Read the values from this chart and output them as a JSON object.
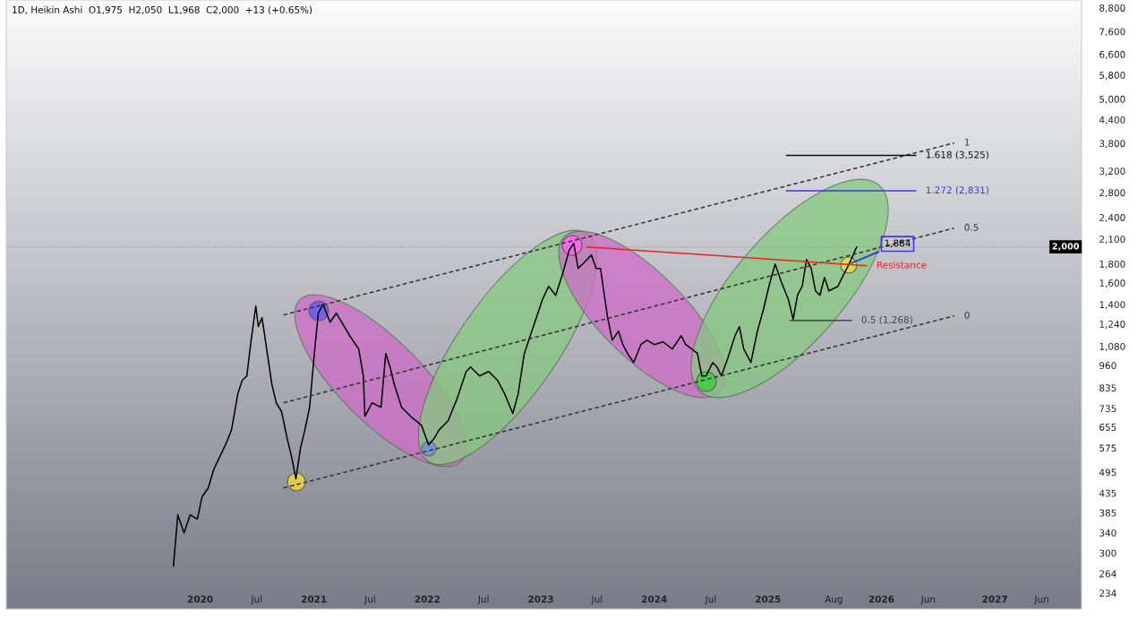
{
  "chart_data": {
    "type": "line",
    "title": "1D, Heikin Ashi  O1,975  H2,050  L1,968  C2,000  +13 (+0.65%)",
    "log": true,
    "grid": false,
    "legend": false,
    "xlim": [
      "2018-04-17",
      "2027-10-07"
    ],
    "xticks": [
      {
        "value": "2020-01-01",
        "label": "2020"
      },
      {
        "value": "2020-07-01",
        "label": "Jul"
      },
      {
        "value": "2021-01-01",
        "label": "2021"
      },
      {
        "value": "2021-07-01",
        "label": "Jul"
      },
      {
        "value": "2022-01-01",
        "label": "2022"
      },
      {
        "value": "2022-07-01",
        "label": "Jul"
      },
      {
        "value": "2023-01-01",
        "label": "2023"
      },
      {
        "value": "2023-07-01",
        "label": "Jul"
      },
      {
        "value": "2024-01-01",
        "label": "2024"
      },
      {
        "value": "2024-07-01",
        "label": "Jul"
      },
      {
        "value": "2025-01-01",
        "label": "2025"
      },
      {
        "value": "2025-08-01",
        "label": "Aug"
      },
      {
        "value": "2026-01-01",
        "label": "2026"
      },
      {
        "value": "2026-06-01",
        "label": "Jun"
      },
      {
        "value": "2027-01-01",
        "label": "2027"
      },
      {
        "value": "2027-06-01",
        "label": "Jun"
      }
    ],
    "ylim": [
      212,
      9240
    ],
    "yticks": [
      {
        "value": 234,
        "label": "234"
      },
      {
        "value": 264,
        "label": "264"
      },
      {
        "value": 300,
        "label": "300"
      },
      {
        "value": 340,
        "label": "340"
      },
      {
        "value": 385,
        "label": "385"
      },
      {
        "value": 435,
        "label": "435"
      },
      {
        "value": 495,
        "label": "495"
      },
      {
        "value": 575,
        "label": "575"
      },
      {
        "value": 655,
        "label": "655"
      },
      {
        "value": 735,
        "label": "735"
      },
      {
        "value": 835,
        "label": "835"
      },
      {
        "value": 960,
        "label": "960"
      },
      {
        "value": 1080,
        "label": "1,080"
      },
      {
        "value": 1240,
        "label": "1,240"
      },
      {
        "value": 1400,
        "label": "1,400"
      },
      {
        "value": 1600,
        "label": "1,600"
      },
      {
        "value": 1800,
        "label": "1,800"
      },
      {
        "value": 2100,
        "label": "2,100"
      },
      {
        "value": 2400,
        "label": "2,400"
      },
      {
        "value": 2800,
        "label": "2,800"
      },
      {
        "value": 3200,
        "label": "3,200"
      },
      {
        "value": 3800,
        "label": "3,800"
      },
      {
        "value": 4400,
        "label": "4,400"
      },
      {
        "value": 5000,
        "label": "5,000"
      },
      {
        "value": 5800,
        "label": "5,800"
      },
      {
        "value": 6600,
        "label": "6,600"
      },
      {
        "value": 7600,
        "label": "7,600"
      },
      {
        "value": 8800,
        "label": "8,800"
      }
    ],
    "series": [
      {
        "color": "#000000",
        "x": [
          "2019-10-07",
          "2019-10-21",
          "2019-11-10",
          "2019-11-30",
          "2019-12-23",
          "2020-01-07",
          "2020-01-27",
          "2020-02-13",
          "2020-03-04",
          "2020-03-25",
          "2020-04-11",
          "2020-05-01",
          "2020-05-15",
          "2020-05-30",
          "2020-06-13",
          "2020-06-28",
          "2020-07-06",
          "2020-07-18",
          "2020-08-04",
          "2020-08-19",
          "2020-09-02",
          "2020-09-19",
          "2020-10-07",
          "2020-10-21",
          "2020-11-04",
          "2020-11-19",
          "2020-12-03",
          "2020-12-18",
          "2021-01-01",
          "2021-01-15",
          "2021-01-30",
          "2021-02-22",
          "2021-03-14",
          "2021-04-26",
          "2021-05-25",
          "2021-06-09",
          "2021-06-14",
          "2021-07-07",
          "2021-08-05",
          "2021-08-20",
          "2021-09-03",
          "2021-09-17",
          "2021-10-10",
          "2021-11-08",
          "2021-12-13",
          "2022-01-05",
          "2022-01-22",
          "2022-02-08",
          "2022-03-09",
          "2022-04-07",
          "2022-05-06",
          "2022-05-20",
          "2022-06-18",
          "2022-07-17",
          "2022-08-15",
          "2022-09-07",
          "2022-10-03",
          "2022-10-20",
          "2022-11-09",
          "2022-12-08",
          "2023-01-06",
          "2023-01-26",
          "2023-02-18",
          "2023-03-13",
          "2023-04-02",
          "2023-04-17",
          "2023-05-01",
          "2023-05-16",
          "2023-06-13",
          "2023-06-28",
          "2023-07-12",
          "2023-08-04",
          "2023-08-19",
          "2023-09-08",
          "2023-09-22",
          "2023-10-07",
          "2023-10-27",
          "2023-11-19",
          "2023-12-09",
          "2024-01-01",
          "2024-01-30",
          "2024-02-28",
          "2024-03-28",
          "2024-04-11",
          "2024-05-01",
          "2024-05-19",
          "2024-06-02",
          "2024-06-16",
          "2024-07-07",
          "2024-07-21",
          "2024-08-04",
          "2024-08-25",
          "2024-09-17",
          "2024-10-01",
          "2024-10-15",
          "2024-11-07",
          "2024-11-28",
          "2024-12-18",
          "2025-01-04",
          "2025-01-24",
          "2025-02-13",
          "2025-03-08",
          "2025-03-23",
          "2025-04-06",
          "2025-04-21",
          "2025-05-05",
          "2025-05-20",
          "2025-06-03",
          "2025-06-17",
          "2025-07-02",
          "2025-07-16",
          "2025-08-14",
          "2025-08-28",
          "2025-09-12",
          "2025-09-26",
          "2025-10-08",
          "2025-10-14"
        ],
        "values": [
          277,
          380,
          340,
          380,
          370,
          425,
          449,
          502,
          545,
          593,
          644,
          804,
          874,
          899,
          1122,
          1386,
          1220,
          1290,
          1033,
          850,
          761,
          720,
          609,
          545,
          475,
          576,
          644,
          740,
          1004,
          1326,
          1401,
          1254,
          1326,
          1154,
          1062,
          899,
          700,
          761,
          740,
          1033,
          950,
          850,
          740,
          700,
          662,
          586,
          609,
          644,
          681,
          782,
          924,
          950,
          899,
          924,
          874,
          804,
          712,
          804,
          1033,
          1220,
          1441,
          1566,
          1482,
          1702,
          1956,
          2045,
          1751,
          1800,
          1903,
          1751,
          1751,
          1290,
          1122,
          1187,
          1092,
          1033,
          977,
          1092,
          1122,
          1092,
          1110,
          1062,
          1154,
          1092,
          1062,
          1033,
          899,
          899,
          977,
          950,
          899,
          1004,
          1154,
          1220,
          1062,
          977,
          1187,
          1363,
          1566,
          1800,
          1610,
          1441,
          1276,
          1482,
          1566,
          1851,
          1751,
          1523,
          1482,
          1656,
          1523,
          1566,
          1656,
          1751,
          1851,
          1956,
          2000
        ]
      },
      {
        "name": "1",
        "color": "#333333",
        "line_style": "dashed",
        "x": [
          "2020-09-25",
          "2026-08-23"
        ],
        "values": [
          1312,
          3809
        ]
      },
      {
        "name": "0.5",
        "color": "#333333",
        "line_style": "dashed",
        "x": [
          "2020-09-25",
          "2026-08-23"
        ],
        "values": [
          761,
          2247
        ]
      },
      {
        "name": "0",
        "color": "#333333",
        "line_style": "dashed",
        "x": [
          "2020-09-25",
          "2026-08-23"
        ],
        "values": [
          449,
          1304
        ]
      },
      {
        "name": "1.618 (3,525)",
        "color": "#111111",
        "x": [
          "2025-03-02",
          "2026-04-21"
        ],
        "values": [
          3525,
          3525
        ]
      },
      {
        "name": "1.272 (2,831)",
        "color": "#3a3ad8",
        "x": [
          "2025-03-02",
          "2026-04-21"
        ],
        "values": [
          2831,
          2831
        ]
      },
      {
        "name": "0.5 (1,268)",
        "color": "#444444",
        "x": [
          "2025-03-14",
          "2025-09-26"
        ],
        "values": [
          1268,
          1268
        ]
      },
      {
        "name": "Resistance",
        "color": "#ee2222",
        "x": [
          "2023-05-30",
          "2025-11-14"
        ],
        "values": [
          2000,
          1780
        ]
      }
    ],
    "ref_lines": [
      {
        "axis": "y",
        "value": 2000,
        "label": "2,000",
        "color": "#888888",
        "line_style": "dotted"
      }
    ],
    "annotations": [
      {
        "text": "1,884",
        "x": "2025-09-20",
        "y": 1800
      }
    ]
  }
}
